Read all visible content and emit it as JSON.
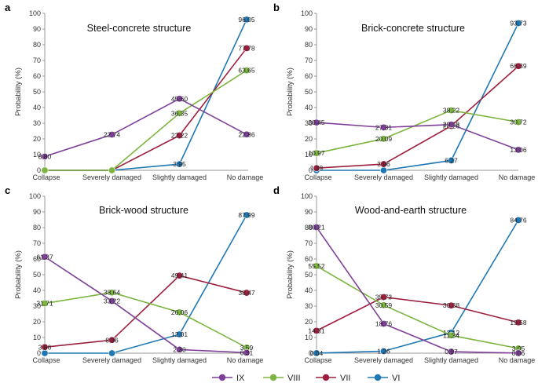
{
  "chart_data": [
    {
      "type": "line",
      "panel_label": "a",
      "title": "Steel-concrete structure",
      "ylabel": "Probability (%)",
      "ylim": [
        0,
        100
      ],
      "yticks": [
        "0",
        "10",
        "20",
        "30",
        "40",
        "50",
        "60",
        "70",
        "80",
        "90",
        "100"
      ],
      "categories": [
        "Collapse",
        "Severely damaged",
        "Slightly damaged",
        "No damage"
      ],
      "series": [
        {
          "name": "IX",
          "values": [
            8.8,
            22.74,
            45.6,
            22.86
          ],
          "labels": [
            "8.80",
            "22.74",
            "45.60",
            "22.86"
          ]
        },
        {
          "name": "VIII",
          "values": [
            0,
            0,
            36.35,
            63.65
          ],
          "labels": [
            "",
            "",
            "36.35",
            "63.65"
          ]
        },
        {
          "name": "VII",
          "values": [
            0,
            0,
            22.22,
            77.78
          ],
          "labels": [
            "",
            "",
            "22.22",
            "77.78"
          ]
        },
        {
          "name": "VI",
          "values": [
            0,
            0,
            3.95,
            96.05
          ],
          "labels": [
            "",
            "",
            "3.95",
            "96.05"
          ]
        }
      ]
    },
    {
      "type": "line",
      "panel_label": "b",
      "title": "Brick-concrete structure",
      "ylabel": "Probability (%)",
      "ylim": [
        0,
        100
      ],
      "yticks": [
        "0",
        "10",
        "20",
        "30",
        "40",
        "50",
        "60",
        "70",
        "80",
        "90",
        "100"
      ],
      "categories": [
        "Collapse",
        "Severely damaged",
        "Slightly damaged",
        "No damage"
      ],
      "series": [
        {
          "name": "IX",
          "values": [
            30.45,
            27.31,
            29.18,
            13.06
          ],
          "labels": [
            "30.45",
            "27.31",
            "29.18",
            "13.06"
          ]
        },
        {
          "name": "VIII",
          "values": [
            10.97,
            20.09,
            38.22,
            30.72
          ],
          "labels": [
            "10.97",
            "20.09",
            "38.22",
            "30.72"
          ]
        },
        {
          "name": "VII",
          "values": [
            1.39,
            3.96,
            28.26,
            66.39
          ],
          "labels": [
            "1.39",
            "3.96",
            "28.26",
            "66.39"
          ]
        },
        {
          "name": "VI",
          "values": [
            0,
            0,
            6.27,
            93.73
          ],
          "labels": [
            "",
            "",
            "6.27",
            "93.73"
          ]
        }
      ]
    },
    {
      "type": "line",
      "panel_label": "c",
      "title": "Brick-wood structure",
      "ylabel": "Probability (%)",
      "ylim": [
        0,
        100
      ],
      "yticks": [
        "0",
        "10",
        "20",
        "30",
        "40",
        "50",
        "60",
        "70",
        "80",
        "90",
        "100"
      ],
      "categories": [
        "Collapse",
        "Severely damaged",
        "Slightly damaged",
        "No damage"
      ],
      "series": [
        {
          "name": "IX",
          "values": [
            61.37,
            33.22,
            2.3,
            0.31
          ],
          "labels": [
            "61.37",
            "33.22",
            "2.30",
            "0.31"
          ]
        },
        {
          "name": "VIII",
          "values": [
            31.71,
            38.64,
            26.06,
            3.59
          ],
          "labels": [
            "31.71",
            "38.64",
            "26.06",
            "3.59"
          ]
        },
        {
          "name": "VII",
          "values": [
            3.86,
            8.36,
            49.41,
            38.47
          ],
          "labels": [
            "3.86",
            "8.36",
            "49.41",
            "38.47"
          ]
        },
        {
          "name": "VI",
          "values": [
            0,
            0,
            12.01,
            87.99
          ],
          "labels": [
            "",
            "",
            "12.01",
            "87.99"
          ]
        }
      ]
    },
    {
      "type": "line",
      "panel_label": "d",
      "title": "Wood-and-earth structure",
      "ylabel": "Probability (%)",
      "ylim": [
        0,
        100
      ],
      "yticks": [
        "0",
        "10",
        "20",
        "30",
        "40",
        "50",
        "60",
        "70",
        "80",
        "90",
        "100"
      ],
      "categories": [
        "Collapse",
        "Severely damaged",
        "Slightly damaged",
        "No damage"
      ],
      "series": [
        {
          "name": "IX",
          "values": [
            80.21,
            18.76,
            0.97,
            0.06
          ],
          "labels": [
            "80.21",
            "18.76",
            "0.97",
            "0.06"
          ]
        },
        {
          "name": "VIII",
          "values": [
            55.52,
            30.59,
            11.34,
            3.05
          ],
          "labels": [
            "55.52",
            "30.59",
            "11.34",
            "3.05"
          ]
        },
        {
          "name": "VII",
          "values": [
            14.31,
            35.73,
            30.38,
            19.58
          ],
          "labels": [
            "14.31",
            "35.73",
            "30.38",
            "19.58"
          ]
        },
        {
          "name": "VI",
          "values": [
            0.04,
            1.26,
            13.12,
            84.76
          ],
          "labels": [
            "0.04",
            "1.26",
            "13.12",
            "84.76"
          ]
        }
      ]
    }
  ],
  "legend": {
    "entries": [
      "IX",
      "VIII",
      "VII",
      "VI"
    ],
    "placement": "bottom-center"
  },
  "colors": {
    "IX": "#7d3f98",
    "VIII": "#7cb540",
    "VII": "#9c1f3d",
    "VI": "#1f78b4",
    "axis": "#999999"
  }
}
